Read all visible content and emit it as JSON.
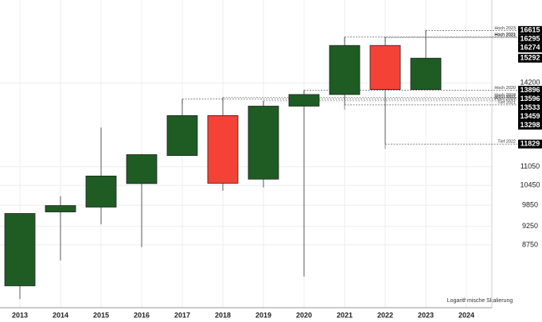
{
  "chart_data": {
    "type": "candlestick",
    "categories": [
      "2013",
      "2014",
      "2015",
      "2016",
      "2017",
      "2018",
      "2019",
      "2020",
      "2021",
      "2022",
      "2023",
      "2024"
    ],
    "open": [
      7740,
      9655,
      9795,
      10510,
      11430,
      12880,
      10650,
      13249,
      13718,
      15885,
      13924,
      null
    ],
    "high": [
      9610,
      10120,
      12430,
      11480,
      13533,
      13596,
      13459,
      13896,
      16295,
      16274,
      16615,
      null
    ],
    "low": [
      7440,
      8350,
      9305,
      8690,
      11430,
      10285,
      10385,
      7960,
      13298,
      11829,
      13924,
      null
    ],
    "close": [
      9610,
      9840,
      10750,
      11460,
      12880,
      10520,
      13249,
      13718,
      15885,
      13924,
      15292,
      null
    ],
    "up_color": "#1e5c24",
    "down_color": "#f44336",
    "log_scale": true,
    "grid": true,
    "ylim": [
      7250,
      18200
    ],
    "yticks": [
      8750,
      9250,
      9850,
      10450,
      11050,
      14200
    ],
    "levels": [
      {
        "name": "Hoch 2023",
        "value": 16615
      },
      {
        "name": "Hoch 2021",
        "value": 16295
      },
      {
        "name": "Hoch 2022",
        "value": 16274
      },
      {
        "name": "Hoch 2020",
        "value": 13896
      },
      {
        "name": "Hoch 2018",
        "value": 13596
      },
      {
        "name": "Hoch 2017",
        "value": 13533
      },
      {
        "name": "Hoch 2019",
        "value": 13459
      },
      {
        "name": "Tief 2021",
        "value": 13298
      },
      {
        "name": "Tief 2022",
        "value": 11829
      }
    ],
    "note": "Logarithmische Skalierung"
  }
}
